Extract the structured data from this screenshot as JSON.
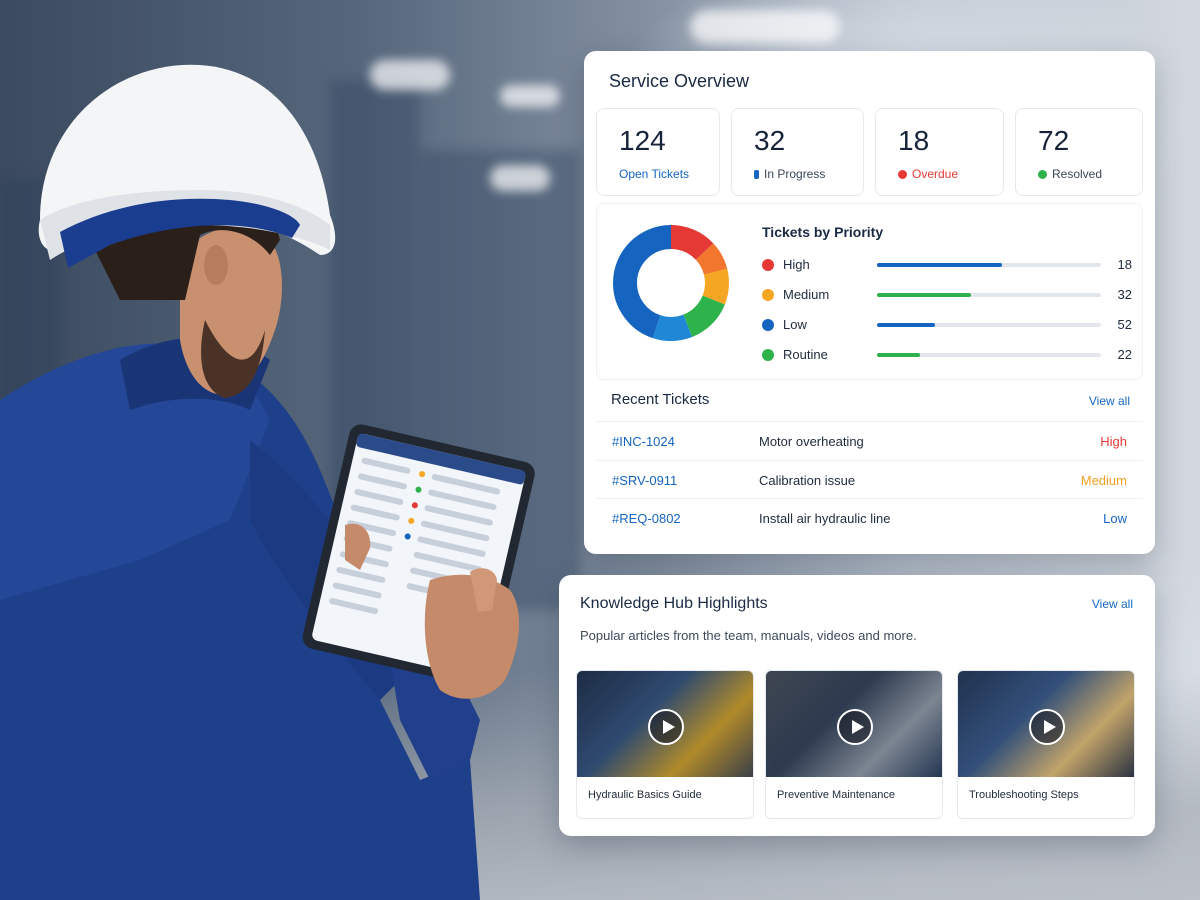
{
  "colors": {
    "accent_blue": "#1565c0",
    "high": "#e53935",
    "medium": "#f5a623",
    "low": "#1565c0",
    "routine": "#2eb24b"
  },
  "service": {
    "title": "Service Overview",
    "stats": [
      {
        "value": "124",
        "label": "Open Tickets",
        "dot": ""
      },
      {
        "value": "32",
        "label": "In Progress",
        "dot": "#1565c0"
      },
      {
        "value": "18",
        "label": "Overdue",
        "dot": "#e53935"
      },
      {
        "value": "72",
        "label": "Resolved",
        "dot": "#2eb24b"
      }
    ],
    "priority": {
      "title": "Tickets by Priority",
      "items": [
        {
          "name": "High",
          "count": 18,
          "fill": 0.56,
          "color": "#e53935",
          "bar": "#1565c0"
        },
        {
          "name": "Medium",
          "count": 32,
          "fill": 0.42,
          "color": "#f5a623",
          "bar": "#2eb24b"
        },
        {
          "name": "Low",
          "count": 52,
          "fill": 0.26,
          "color": "#1565c0",
          "bar": "#1565c0"
        },
        {
          "name": "Routine",
          "count": 22,
          "fill": 0.19,
          "color": "#2eb24b",
          "bar": "#2eb24b"
        }
      ]
    },
    "recent": {
      "title": "Recent Tickets",
      "view_all": "View all",
      "tickets": [
        {
          "id": "#INC-1024",
          "desc": "Motor overheating",
          "priority": "High",
          "color": "#e53935"
        },
        {
          "id": "#SRV-0911",
          "desc": "Calibration issue",
          "priority": "Medium",
          "color": "#f0a020"
        },
        {
          "id": "#REQ-0802",
          "desc": "Install air hydraulic line",
          "priority": "Low",
          "color": "#1565c0"
        }
      ]
    }
  },
  "knowledge": {
    "title": "Knowledge Hub Highlights",
    "view_all": "View all",
    "subtitle": "Popular articles from the team, manuals, videos and more.",
    "videos": [
      {
        "title": "Hydraulic Basics Guide"
      },
      {
        "title": "Preventive Maintenance"
      },
      {
        "title": "Troubleshooting Steps"
      }
    ]
  }
}
